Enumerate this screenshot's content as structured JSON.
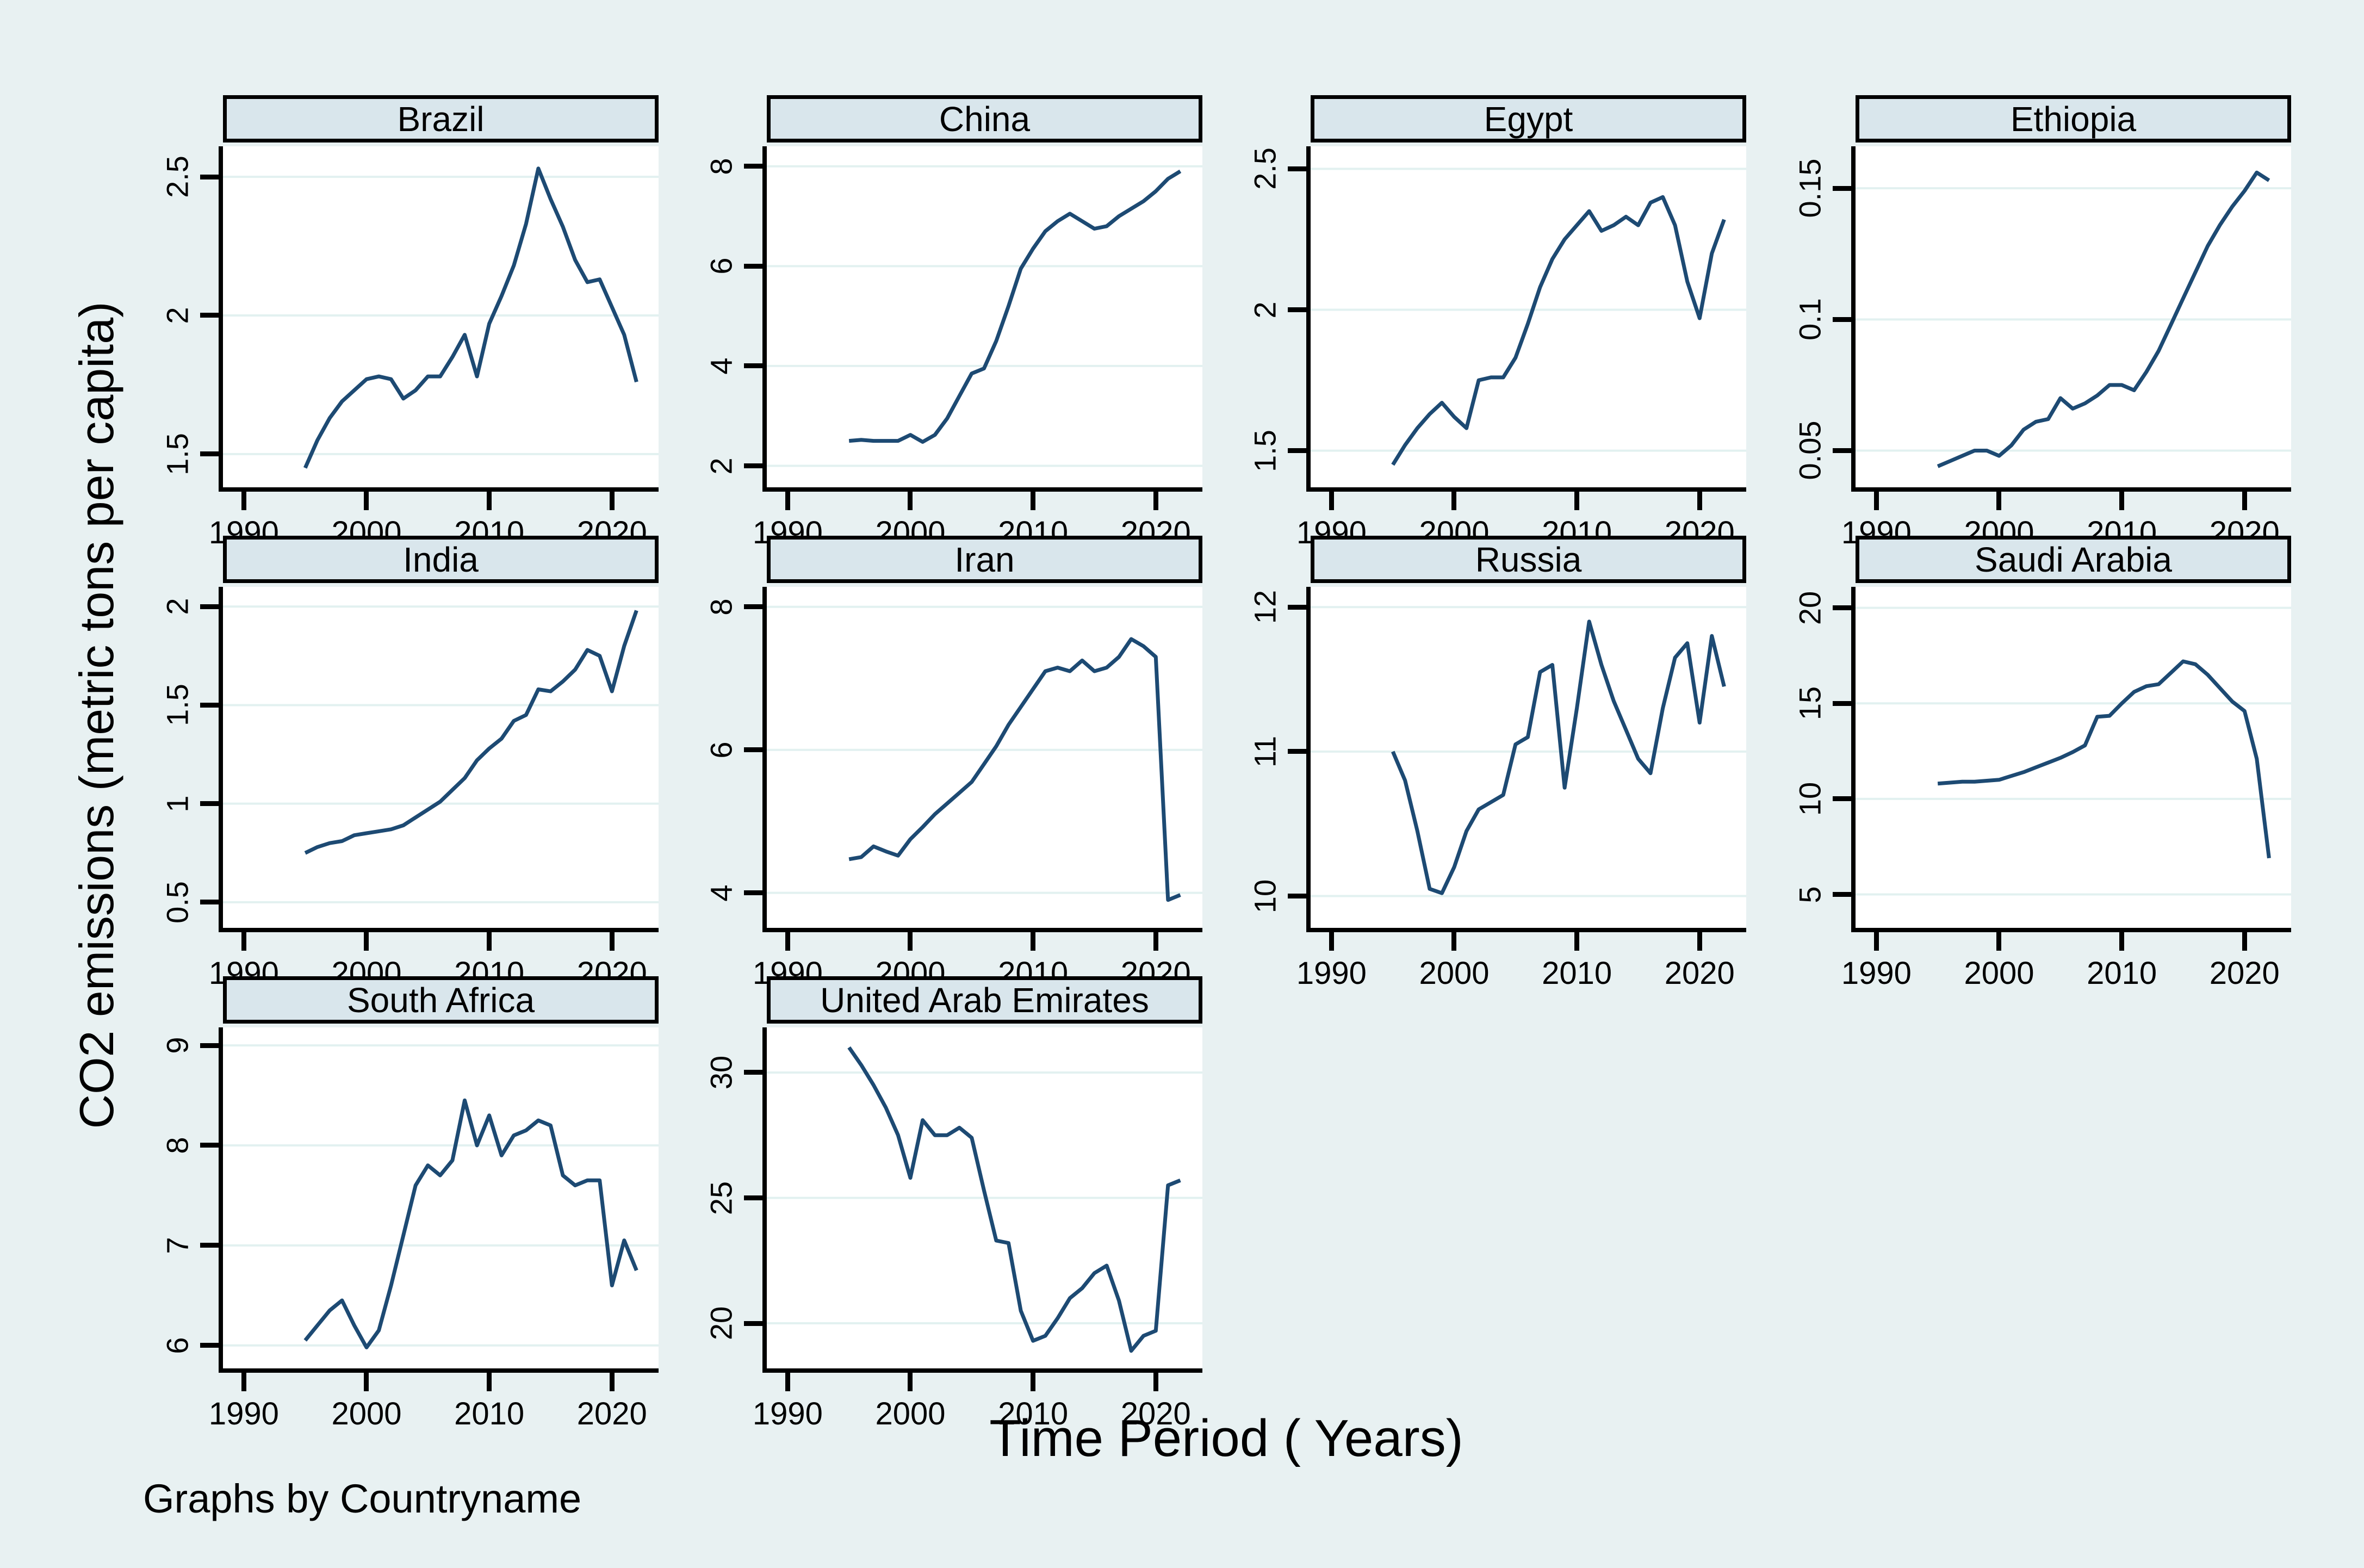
{
  "figure": {
    "ylabel": "CO2 emissions (metric tons per capita)",
    "xlabel": "Time Period ( Years)",
    "caption": "Graphs by Countryname"
  },
  "colors": {
    "background": "#e8f1f2",
    "panel_title_fill": "#d9e6ec",
    "plot_fill": "#ffffff",
    "gridline": "#e2f1f0",
    "axis": "#000000",
    "series_line": "#1d4a73",
    "text": "#000000"
  },
  "chart_data": {
    "type": "line",
    "layout": "small-multiples",
    "grid": "horizontal-only",
    "legend": "none",
    "x": [
      1995,
      1996,
      1997,
      1998,
      1999,
      2000,
      2001,
      2002,
      2003,
      2004,
      2005,
      2006,
      2007,
      2008,
      2009,
      2010,
      2011,
      2012,
      2013,
      2014,
      2015,
      2016,
      2017,
      2018,
      2019,
      2020,
      2021,
      2022
    ],
    "xlim": [
      1988.3,
      2023.8
    ],
    "xticks": {
      "values": [
        1990,
        2000,
        2010,
        2020
      ],
      "labels": [
        "1990",
        "2000",
        "2010",
        "2020"
      ]
    },
    "panels": [
      {
        "title": "Brazil",
        "ylim": [
          1.38,
          2.61
        ],
        "yticks": {
          "values": [
            1.5,
            2,
            2.5
          ],
          "labels": [
            "1.5",
            "2",
            "2.5"
          ]
        },
        "values": [
          1.45,
          1.55,
          1.63,
          1.69,
          1.73,
          1.77,
          1.78,
          1.77,
          1.7,
          1.73,
          1.78,
          1.78,
          1.85,
          1.93,
          1.78,
          1.97,
          2.07,
          2.18,
          2.33,
          2.53,
          2.42,
          2.32,
          2.2,
          2.12,
          2.13,
          2.03,
          1.93,
          1.76
        ]
      },
      {
        "title": "China",
        "ylim": [
          1.57,
          8.4
        ],
        "yticks": {
          "values": [
            2,
            4,
            6,
            8
          ],
          "labels": [
            "2",
            "4",
            "6",
            "8"
          ]
        },
        "values": [
          2.5,
          2.52,
          2.5,
          2.5,
          2.5,
          2.62,
          2.48,
          2.62,
          2.95,
          3.4,
          3.85,
          3.95,
          4.5,
          5.2,
          5.95,
          6.35,
          6.7,
          6.9,
          7.05,
          6.9,
          6.75,
          6.8,
          7.0,
          7.15,
          7.3,
          7.5,
          7.75,
          7.9
        ]
      },
      {
        "title": "Egypt",
        "ylim": [
          1.37,
          2.58
        ],
        "yticks": {
          "values": [
            1.5,
            2,
            2.5
          ],
          "labels": [
            "1.5",
            "2",
            "2.5"
          ]
        },
        "values": [
          1.45,
          1.52,
          1.58,
          1.63,
          1.67,
          1.62,
          1.58,
          1.75,
          1.76,
          1.76,
          1.83,
          1.95,
          2.08,
          2.18,
          2.25,
          2.3,
          2.35,
          2.28,
          2.3,
          2.33,
          2.3,
          2.38,
          2.4,
          2.3,
          2.1,
          1.97,
          2.2,
          2.32
        ]
      },
      {
        "title": "Ethiopia",
        "ylim": [
          0.036,
          0.166
        ],
        "yticks": {
          "values": [
            0.05,
            0.1,
            0.15
          ],
          "labels": [
            "0.05",
            "0.1",
            "0.15"
          ]
        },
        "values": [
          0.044,
          0.046,
          0.048,
          0.05,
          0.05,
          0.048,
          0.052,
          0.058,
          0.061,
          0.062,
          0.07,
          0.066,
          0.068,
          0.071,
          0.075,
          0.075,
          0.073,
          0.08,
          0.088,
          0.098,
          0.108,
          0.118,
          0.128,
          0.136,
          0.143,
          0.149,
          0.156,
          0.153
        ]
      },
      {
        "title": "India",
        "ylim": [
          0.37,
          2.1
        ],
        "yticks": {
          "values": [
            0.5,
            1,
            1.5,
            2
          ],
          "labels": [
            "0.5",
            "1",
            "1.5",
            "2"
          ]
        },
        "values": [
          0.75,
          0.78,
          0.8,
          0.81,
          0.84,
          0.85,
          0.86,
          0.87,
          0.89,
          0.93,
          0.97,
          1.01,
          1.07,
          1.13,
          1.22,
          1.28,
          1.33,
          1.42,
          1.45,
          1.58,
          1.57,
          1.62,
          1.68,
          1.78,
          1.75,
          1.57,
          1.8,
          1.98
        ]
      },
      {
        "title": "Iran",
        "ylim": [
          3.51,
          8.28
        ],
        "yticks": {
          "values": [
            4,
            6,
            8
          ],
          "labels": [
            "4",
            "6",
            "8"
          ]
        },
        "values": [
          4.47,
          4.5,
          4.65,
          4.58,
          4.52,
          4.75,
          4.92,
          5.1,
          5.25,
          5.4,
          5.55,
          5.8,
          6.05,
          6.35,
          6.6,
          6.85,
          7.1,
          7.15,
          7.1,
          7.25,
          7.1,
          7.15,
          7.3,
          7.55,
          7.45,
          7.3,
          3.9,
          3.97
        ]
      },
      {
        "title": "Russia",
        "ylim": [
          9.78,
          12.14
        ],
        "yticks": {
          "values": [
            10,
            11,
            12
          ],
          "labels": [
            "10",
            "11",
            "12"
          ]
        },
        "values": [
          11.0,
          10.8,
          10.45,
          10.05,
          10.02,
          10.2,
          10.45,
          10.6,
          10.65,
          10.7,
          11.05,
          11.1,
          11.55,
          11.6,
          10.75,
          11.3,
          11.9,
          11.6,
          11.35,
          11.15,
          10.95,
          10.85,
          11.3,
          11.65,
          11.75,
          11.2,
          11.8,
          11.45
        ]
      },
      {
        "title": "Saudi Arabia",
        "ylim": [
          3.25,
          21.1
        ],
        "yticks": {
          "values": [
            5,
            10,
            15,
            20
          ],
          "labels": [
            "5",
            "10",
            "15",
            "20"
          ]
        },
        "values": [
          10.8,
          10.85,
          10.9,
          10.9,
          10.95,
          11.0,
          11.2,
          11.4,
          11.65,
          11.9,
          12.15,
          12.45,
          12.8,
          14.3,
          14.35,
          15.0,
          15.6,
          15.9,
          16.0,
          16.6,
          17.2,
          17.05,
          16.5,
          15.8,
          15.1,
          14.6,
          12.1,
          6.9
        ]
      },
      {
        "title": "South Africa",
        "ylim": [
          5.77,
          9.18
        ],
        "yticks": {
          "values": [
            6,
            7,
            8,
            9
          ],
          "labels": [
            "6",
            "7",
            "8",
            "9"
          ]
        },
        "values": [
          6.05,
          6.2,
          6.35,
          6.45,
          6.2,
          5.98,
          6.15,
          6.6,
          7.1,
          7.6,
          7.8,
          7.7,
          7.85,
          8.45,
          8.0,
          8.3,
          7.9,
          8.1,
          8.15,
          8.25,
          8.2,
          7.7,
          7.6,
          7.65,
          7.65,
          6.6,
          7.05,
          6.75
        ]
      },
      {
        "title": "United Arab Emirates",
        "ylim": [
          18.2,
          31.8
        ],
        "yticks": {
          "values": [
            20,
            25,
            30
          ],
          "labels": [
            "20",
            "25",
            "30"
          ]
        },
        "values": [
          31.0,
          30.3,
          29.5,
          28.6,
          27.5,
          25.8,
          28.1,
          27.5,
          27.5,
          27.8,
          27.4,
          25.3,
          23.3,
          23.2,
          20.5,
          19.3,
          19.5,
          20.2,
          21.0,
          21.4,
          22.0,
          22.3,
          20.9,
          18.9,
          19.5,
          19.7,
          25.5,
          25.7
        ]
      }
    ]
  }
}
